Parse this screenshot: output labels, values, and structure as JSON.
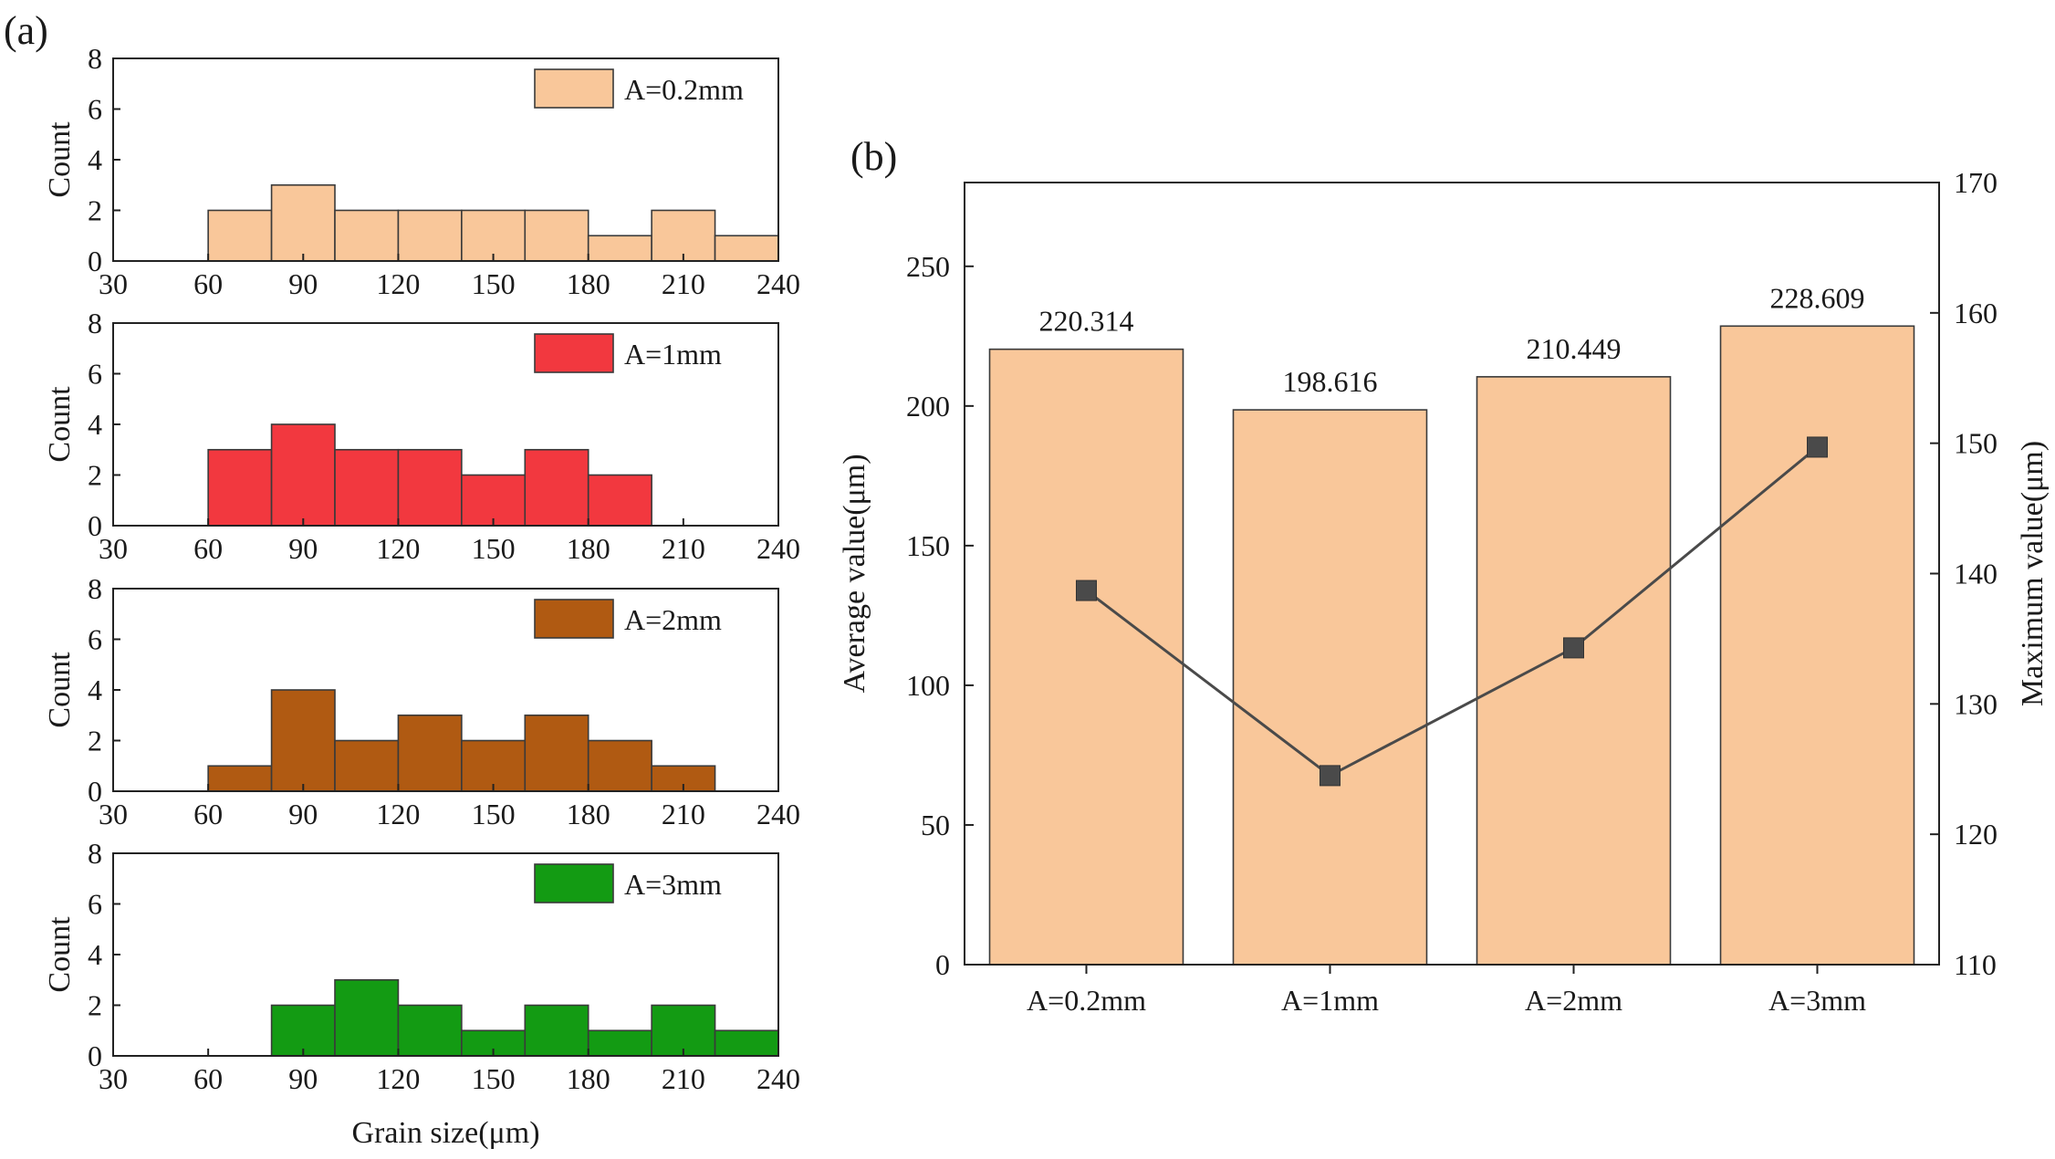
{
  "panel_a_label": "(a)",
  "panel_b_label": "(b)",
  "colors": {
    "peach": "#F9C79A",
    "red": "#F2383F",
    "brown": "#B05A12",
    "green": "#139B13",
    "line": "#4a4a4a"
  },
  "chart_data": [
    {
      "type": "bar",
      "subtype": "histogram",
      "legend": "A=0.2mm",
      "legend_position": "top-right",
      "color": "peach",
      "bin_edges": [
        60,
        80,
        100,
        120,
        140,
        160,
        180,
        200,
        220,
        240
      ],
      "counts": [
        2,
        3,
        2,
        2,
        2,
        2,
        1,
        2,
        1
      ],
      "xlim": [
        30,
        240
      ],
      "xticks": [
        "30",
        "60",
        "90",
        "120",
        "150",
        "180",
        "210",
        "240"
      ],
      "ylim": [
        0,
        8
      ],
      "yticks": [
        "0",
        "2",
        "4",
        "6",
        "8"
      ],
      "ylabel": "Count",
      "xlabel": ""
    },
    {
      "type": "bar",
      "subtype": "histogram",
      "legend": "A=1mm",
      "legend_position": "top-right",
      "color": "red",
      "bin_edges": [
        60,
        80,
        100,
        120,
        140,
        160,
        180,
        200
      ],
      "counts": [
        3,
        4,
        3,
        3,
        2,
        3,
        2
      ],
      "xlim": [
        30,
        240
      ],
      "xticks": [
        "30",
        "60",
        "90",
        "120",
        "150",
        "180",
        "210",
        "240"
      ],
      "ylim": [
        0,
        8
      ],
      "yticks": [
        "0",
        "2",
        "4",
        "6",
        "8"
      ],
      "ylabel": "Count",
      "xlabel": ""
    },
    {
      "type": "bar",
      "subtype": "histogram",
      "legend": "A=2mm",
      "legend_position": "top-right",
      "color": "brown",
      "bin_edges": [
        60,
        80,
        100,
        120,
        140,
        160,
        180,
        200,
        220
      ],
      "counts": [
        1,
        4,
        2,
        3,
        2,
        3,
        2,
        1
      ],
      "xlim": [
        30,
        240
      ],
      "xticks": [
        "30",
        "60",
        "90",
        "120",
        "150",
        "180",
        "210",
        "240"
      ],
      "ylim": [
        0,
        8
      ],
      "yticks": [
        "0",
        "2",
        "4",
        "6",
        "8"
      ],
      "ylabel": "Count",
      "xlabel": ""
    },
    {
      "type": "bar",
      "subtype": "histogram",
      "legend": "A=3mm",
      "legend_position": "top-right",
      "color": "green",
      "bin_edges": [
        80,
        100,
        120,
        140,
        160,
        180,
        200,
        220,
        240
      ],
      "counts": [
        2,
        3,
        2,
        1,
        2,
        1,
        2,
        1
      ],
      "xlim": [
        30,
        240
      ],
      "xticks": [
        "30",
        "60",
        "90",
        "120",
        "150",
        "180",
        "210",
        "240"
      ],
      "ylim": [
        0,
        8
      ],
      "yticks": [
        "0",
        "2",
        "4",
        "6",
        "8"
      ],
      "ylabel": "Count",
      "xlabel": "Grain size(μm)"
    },
    {
      "type": "bar",
      "categories": [
        "A=0.2mm",
        "A=1mm",
        "A=2mm",
        "A=3mm"
      ],
      "bar_values": [
        220.314,
        198.616,
        210.449,
        228.609
      ],
      "bar_labels": [
        "220.314",
        "198.616",
        "210.449",
        "228.609"
      ],
      "bar_color": "peach",
      "ylabel": "Average value(μm)",
      "ylim": [
        0,
        280
      ],
      "yticks": [
        "0",
        "50",
        "100",
        "150",
        "200",
        "250"
      ],
      "secondary": {
        "type": "line",
        "marker": "square",
        "values": [
          138.7,
          124.5,
          134.3,
          149.7
        ],
        "ylabel": "Maximum value(μm)",
        "ylim": [
          110,
          170
        ],
        "yticks": [
          "110",
          "120",
          "130",
          "140",
          "150",
          "160",
          "170"
        ]
      }
    }
  ]
}
